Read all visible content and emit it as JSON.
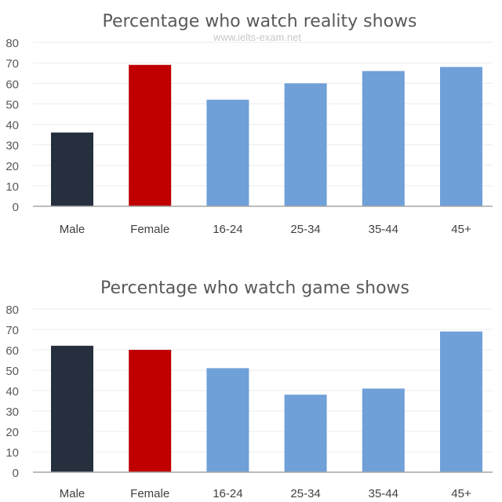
{
  "watermark": "www.ielts-exam.net",
  "colors": {
    "male": "#262f3d",
    "female": "#c00000",
    "age": "#6fa0d8",
    "grid": "#ececec",
    "axis": "#a6a6a6"
  },
  "chart_data": [
    {
      "type": "bar",
      "title": "Percentage who watch reality shows",
      "categories": [
        "Male",
        "Female",
        "16-24",
        "25-34",
        "35-44",
        "45+"
      ],
      "values": [
        36,
        69,
        52,
        60,
        66,
        68
      ],
      "ylim": [
        0,
        80
      ],
      "yticks": [
        0,
        10,
        20,
        30,
        40,
        50,
        60,
        70,
        80
      ],
      "xlabel": "",
      "ylabel": "",
      "grid": true
    },
    {
      "type": "bar",
      "title": "Percentage who watch game shows",
      "categories": [
        "Male",
        "Female",
        "16-24",
        "25-34",
        "35-44",
        "45+"
      ],
      "values": [
        62,
        60,
        51,
        38,
        41,
        69
      ],
      "ylim": [
        0,
        80
      ],
      "yticks": [
        0,
        10,
        20,
        30,
        40,
        50,
        60,
        70,
        80
      ],
      "xlabel": "",
      "ylabel": "",
      "grid": true
    }
  ]
}
